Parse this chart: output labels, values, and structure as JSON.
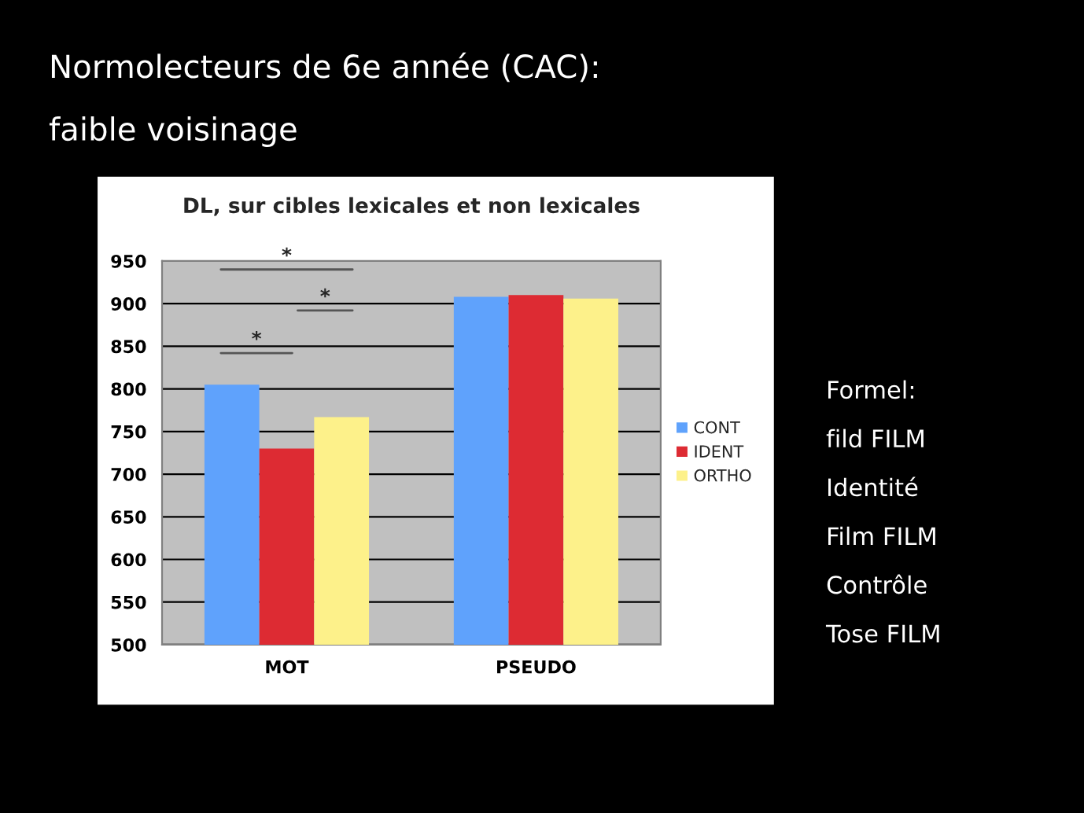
{
  "chart_data": {
    "type": "bar",
    "title": "DL, sur cibles lexicales et non lexicales",
    "categories": [
      "MOT",
      "PSEUDO"
    ],
    "series": [
      {
        "name": "CONT",
        "color": "#5fa2fc",
        "values": [
          805,
          908
        ]
      },
      {
        "name": "IDENT",
        "color": "#dd2b33",
        "values": [
          730,
          910
        ]
      },
      {
        "name": "ORTHO",
        "color": "#fdf18a",
        "values": [
          767,
          906
        ]
      }
    ],
    "ylim": [
      500,
      950
    ],
    "yticks": [
      500,
      550,
      600,
      650,
      700,
      750,
      800,
      850,
      900,
      950
    ],
    "grid": "y",
    "legend": "right",
    "annotations": [
      "Normolecteurs de 6e année (CAC):",
      "faible voisinage",
      "*",
      "*",
      "*",
      "Formel:",
      "fild FILM",
      "Identité",
      "Film FILM",
      "Contrôle",
      "Tose FILM"
    ]
  }
}
